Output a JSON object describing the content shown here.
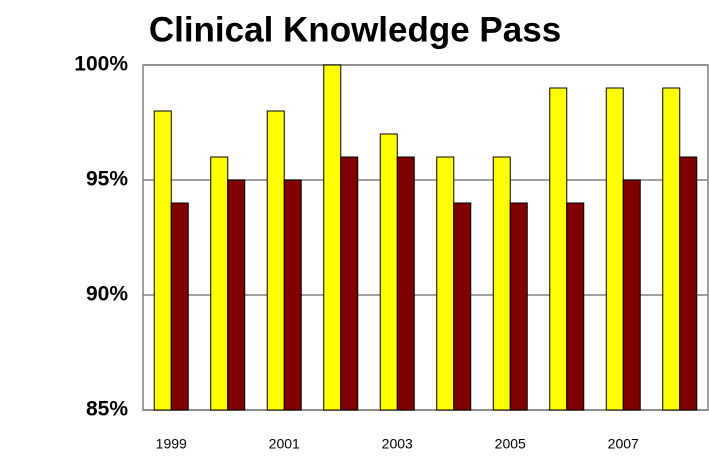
{
  "chart_data": {
    "type": "bar",
    "title": "Clinical Knowledge Pass",
    "categories": [
      "1999",
      null,
      "2001",
      null,
      "2003",
      null,
      "2005",
      null,
      "2007",
      null
    ],
    "series": [
      {
        "color": "#ffff00",
        "values": [
          98,
          96,
          98,
          100,
          97,
          96,
          96,
          99,
          99,
          99
        ]
      },
      {
        "color": "#800000",
        "values": [
          94,
          95,
          95,
          96,
          96,
          94,
          94,
          94,
          95,
          96
        ]
      }
    ],
    "ylim": [
      85,
      100
    ],
    "yticks": [
      {
        "value": 85,
        "label": "85%"
      },
      {
        "value": 90,
        "label": "90%"
      },
      {
        "value": 95,
        "label": "95%"
      },
      {
        "value": 100,
        "label": "100%"
      }
    ],
    "grid": true
  }
}
